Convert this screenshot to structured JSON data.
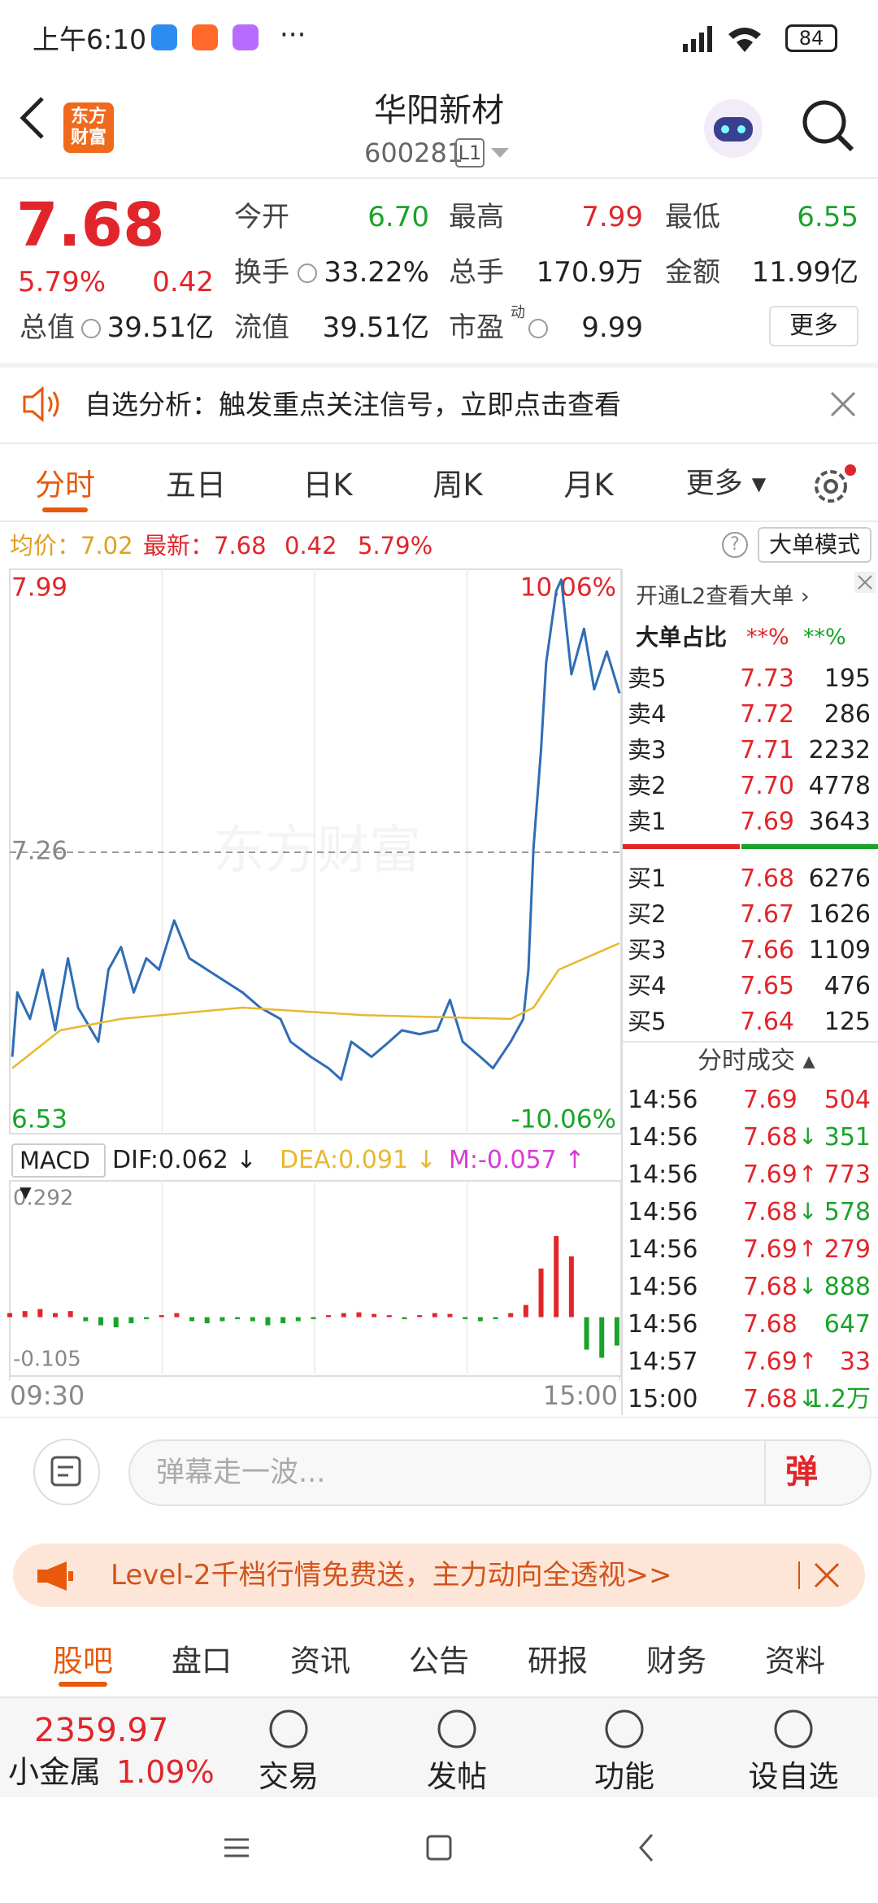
{
  "status": {
    "time": "上午6:10",
    "battery": "84"
  },
  "header": {
    "logo": "东方财富",
    "title": "华阳新材",
    "code": "600281",
    "level": "L1"
  },
  "quote": {
    "price": "7.68",
    "pct": "5.79%",
    "change": "0.42",
    "open_label": "今开",
    "open": "6.70",
    "high_label": "最高",
    "high": "7.99",
    "low_label": "最低",
    "low": "6.55",
    "turnover_label": "换手",
    "turnover": "33.22%",
    "volume_label": "总手",
    "volume": "170.9万",
    "amount_label": "金额",
    "amount": "11.99亿",
    "mcap_label": "总值",
    "mcap": "39.51亿",
    "float_label": "流值",
    "float": "39.51亿",
    "pe_label": "市盈",
    "pe_sup": "动",
    "pe": "9.99",
    "more": "更多"
  },
  "notice": "自选分析：触发重点关注信号，立即点击查看",
  "tabs": [
    "分时",
    "五日",
    "日K",
    "周K",
    "月K",
    "更多"
  ],
  "infobar": {
    "avg": "均价：7.02",
    "latest": "最新：7.68",
    "change": "0.42",
    "pct": "5.79%",
    "mode": "大单模式"
  },
  "chart": {
    "type": "line",
    "xlim": [
      0,
      241
    ],
    "xticks": [
      {
        "value": 0,
        "label": "09:30"
      },
      {
        "value": 241,
        "label": "15:00"
      }
    ],
    "ylim": [
      6.53,
      7.99
    ],
    "yticks": [
      7.99,
      7.26,
      6.53
    ],
    "y2lim": [
      -10.06,
      10.06
    ],
    "y2ticks": [
      {
        "value": 10.06,
        "label": "10.06%"
      },
      {
        "value": -10.06,
        "label": "-10.06%"
      }
    ],
    "series": [
      {
        "color": "#2f6db5",
        "x": [
          1,
          3,
          8,
          13,
          18,
          23,
          27,
          35,
          39,
          44,
          49,
          54,
          59,
          65,
          71,
          78,
          85,
          92,
          99,
          107,
          111,
          119,
          126,
          131,
          135,
          143,
          150,
          155,
          162,
          169,
          174,
          179,
          186,
          191,
          198,
          203,
          205,
          207,
          210,
          212,
          216,
          218,
          222,
          227,
          231,
          236,
          241
        ],
        "values": [
          6.72,
          6.89,
          6.82,
          6.95,
          6.79,
          6.98,
          6.85,
          6.76,
          6.95,
          7.01,
          6.89,
          6.98,
          6.95,
          7.08,
          6.98,
          6.95,
          6.92,
          6.89,
          6.85,
          6.82,
          6.76,
          6.72,
          6.69,
          6.66,
          6.76,
          6.72,
          6.76,
          6.79,
          6.78,
          6.79,
          6.87,
          6.76,
          6.72,
          6.69,
          6.76,
          6.82,
          6.95,
          7.27,
          7.53,
          7.76,
          7.95,
          7.98,
          7.73,
          7.85,
          7.69,
          7.79,
          7.68
        ]
      },
      {
        "color": "#e8b830",
        "x": [
          1,
          20,
          44,
          92,
          140,
          198,
          207,
          217,
          241
        ],
        "values": [
          6.69,
          6.79,
          6.82,
          6.85,
          6.83,
          6.82,
          6.85,
          6.95,
          7.02
        ]
      }
    ]
  },
  "macd": {
    "type": "bar",
    "label": "MACD",
    "dif": "DIF:0.062",
    "dif_arrow": "↓",
    "dea": "DEA:0.091",
    "dea_arrow": "↓",
    "m": "M:-0.057",
    "m_arrow": "↑",
    "ylim": [
      -0.105,
      0.292
    ],
    "yticks": [
      0.292,
      -0.105
    ],
    "up_color": "#e0262b",
    "down_color": "#1aa32a",
    "x": [
      0,
      6,
      12,
      18,
      24,
      30,
      36,
      42,
      48,
      54,
      60,
      66,
      72,
      78,
      84,
      90,
      96,
      102,
      108,
      114,
      120,
      126,
      132,
      138,
      144,
      150,
      156,
      162,
      168,
      174,
      180,
      186,
      192,
      198,
      204,
      210,
      216,
      222,
      228,
      234,
      240
    ],
    "values": [
      0.01,
      0.015,
      0.02,
      0.01,
      0.015,
      -0.01,
      -0.02,
      -0.025,
      -0.015,
      -0.005,
      0.005,
      0.01,
      -0.01,
      -0.015,
      -0.01,
      -0.005,
      -0.01,
      -0.02,
      -0.015,
      -0.01,
      -0.005,
      0.005,
      0.01,
      0.012,
      0.008,
      0.005,
      -0.005,
      0.005,
      0.01,
      0.008,
      -0.005,
      -0.01,
      -0.005,
      0.01,
      0.03,
      0.12,
      0.2,
      0.15,
      -0.08,
      -0.1,
      -0.07
    ]
  },
  "orderbook": {
    "l2": "开通L2查看大单",
    "ratio_label": "大单占比",
    "ratio_buy": "**%",
    "ratio_sell": "**%",
    "asks": [
      {
        "label": "卖5",
        "price": "7.73",
        "vol": "195"
      },
      {
        "label": "卖4",
        "price": "7.72",
        "vol": "286"
      },
      {
        "label": "卖3",
        "price": "7.71",
        "vol": "2232"
      },
      {
        "label": "卖2",
        "price": "7.70",
        "vol": "4778"
      },
      {
        "label": "卖1",
        "price": "7.69",
        "vol": "3643"
      }
    ],
    "bids": [
      {
        "label": "买1",
        "price": "7.68",
        "vol": "6276"
      },
      {
        "label": "买2",
        "price": "7.67",
        "vol": "1626"
      },
      {
        "label": "买3",
        "price": "7.66",
        "vol": "1109"
      },
      {
        "label": "买4",
        "price": "7.65",
        "vol": "476"
      },
      {
        "label": "买5",
        "price": "7.64",
        "vol": "125"
      }
    ]
  },
  "trades": {
    "title": "分时成交",
    "rows": [
      {
        "time": "14:56",
        "price": "7.69",
        "vol": "504",
        "color": "#e0262b"
      },
      {
        "time": "14:56",
        "price": "7.68",
        "dir": "↓",
        "vol": "351",
        "color": "#1aa32a"
      },
      {
        "time": "14:56",
        "price": "7.69",
        "dir": "↑",
        "vol": "773",
        "color": "#e0262b"
      },
      {
        "time": "14:56",
        "price": "7.68",
        "dir": "↓",
        "vol": "578",
        "color": "#1aa32a"
      },
      {
        "time": "14:56",
        "price": "7.69",
        "dir": "↑",
        "vol": "279",
        "color": "#e0262b"
      },
      {
        "time": "14:56",
        "price": "7.68",
        "dir": "↓",
        "vol": "888",
        "color": "#1aa32a"
      },
      {
        "time": "14:56",
        "price": "7.68",
        "vol": "647",
        "color": "#1aa32a"
      },
      {
        "time": "14:57",
        "price": "7.69",
        "dir": "↑",
        "vol": "33",
        "color": "#e0262b"
      },
      {
        "time": "15:00",
        "price": "7.68",
        "dir": "↓",
        "vol": "1.2万",
        "color": "#1aa32a"
      }
    ]
  },
  "comment": {
    "placeholder": "弹幕走一波...",
    "button": "弹"
  },
  "banner": "Level-2千档行情免费送，主力动向全透视>>",
  "bottom_tabs": [
    "股吧",
    "盘口",
    "资讯",
    "公告",
    "研报",
    "财务",
    "资料"
  ],
  "nav": {
    "index": "2359.97",
    "index_name": "小金属",
    "index_pct": "1.09%",
    "items": [
      "交易",
      "发帖",
      "功能",
      "设自选"
    ]
  }
}
